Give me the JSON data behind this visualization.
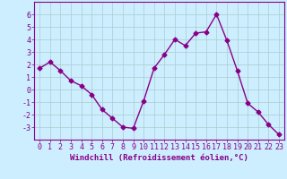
{
  "x": [
    0,
    1,
    2,
    3,
    4,
    5,
    6,
    7,
    8,
    9,
    10,
    11,
    12,
    13,
    14,
    15,
    16,
    17,
    18,
    19,
    20,
    21,
    22,
    23
  ],
  "y": [
    1.7,
    2.2,
    1.5,
    0.7,
    0.3,
    -0.4,
    -1.6,
    -2.3,
    -3.0,
    -3.1,
    -0.9,
    1.7,
    2.8,
    4.0,
    3.5,
    4.5,
    4.6,
    6.0,
    3.9,
    1.5,
    -1.1,
    -1.8,
    -2.8,
    -3.6
  ],
  "line_color": "#880088",
  "marker": "D",
  "marker_size": 2.5,
  "bg_color": "#cceeff",
  "grid_color": "#aacccc",
  "xlabel": "Windchill (Refroidissement éolien,°C)",
  "ylim": [
    -4,
    7
  ],
  "xlim": [
    -0.5,
    23.5
  ],
  "yticks": [
    -3,
    -2,
    -1,
    0,
    1,
    2,
    3,
    4,
    5,
    6
  ],
  "xticks": [
    0,
    1,
    2,
    3,
    4,
    5,
    6,
    7,
    8,
    9,
    10,
    11,
    12,
    13,
    14,
    15,
    16,
    17,
    18,
    19,
    20,
    21,
    22,
    23
  ],
  "line_width": 1.0,
  "xlabel_fontsize": 6.5,
  "tick_fontsize": 6,
  "axis_color": "#880088"
}
